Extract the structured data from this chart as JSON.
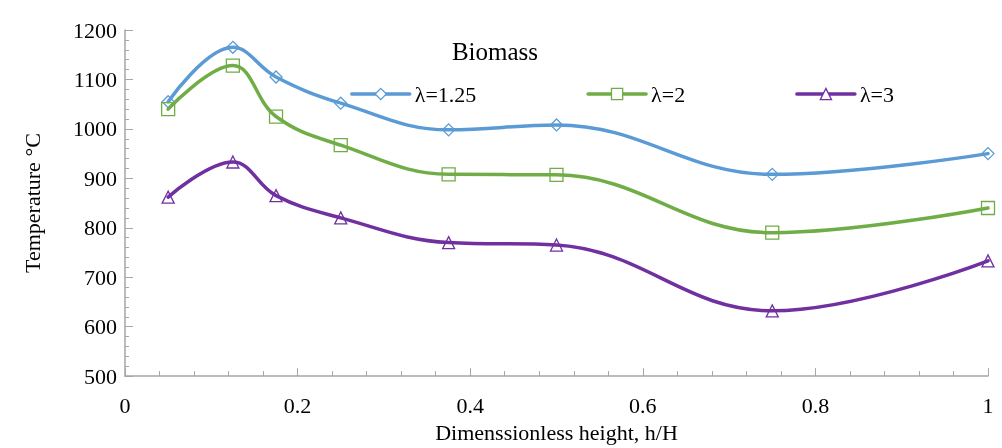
{
  "chart_data": {
    "type": "line",
    "title": "Biomass",
    "xlabel": "Dimenssionless height, h/H",
    "ylabel": "Temperature °C",
    "x": [
      0.05,
      0.125,
      0.175,
      0.25,
      0.375,
      0.5,
      0.75,
      1
    ],
    "series": [
      {
        "name": "λ=1.25",
        "color": "#5b9bd5",
        "marker": "diamond",
        "values": [
          1055,
          1165,
          1105,
          1052,
          998,
          1008,
          908,
          950
        ]
      },
      {
        "name": "λ=2",
        "color": "#70ad47",
        "marker": "square",
        "values": [
          1040,
          1128,
          1025,
          967,
          908,
          907,
          790,
          840
        ]
      },
      {
        "name": "λ=3",
        "color": "#7030a0",
        "marker": "triangle",
        "values": [
          862,
          933,
          865,
          820,
          770,
          765,
          632,
          733
        ]
      }
    ],
    "xlim": [
      0,
      1
    ],
    "xticks": [
      0,
      0.2,
      0.4,
      0.6,
      0.8,
      1
    ],
    "ylim": [
      500,
      1200
    ],
    "yticks": [
      500,
      600,
      700,
      800,
      900,
      1000,
      1100,
      1200
    ],
    "grid": false,
    "legend": "top",
    "line_style": "solid"
  }
}
